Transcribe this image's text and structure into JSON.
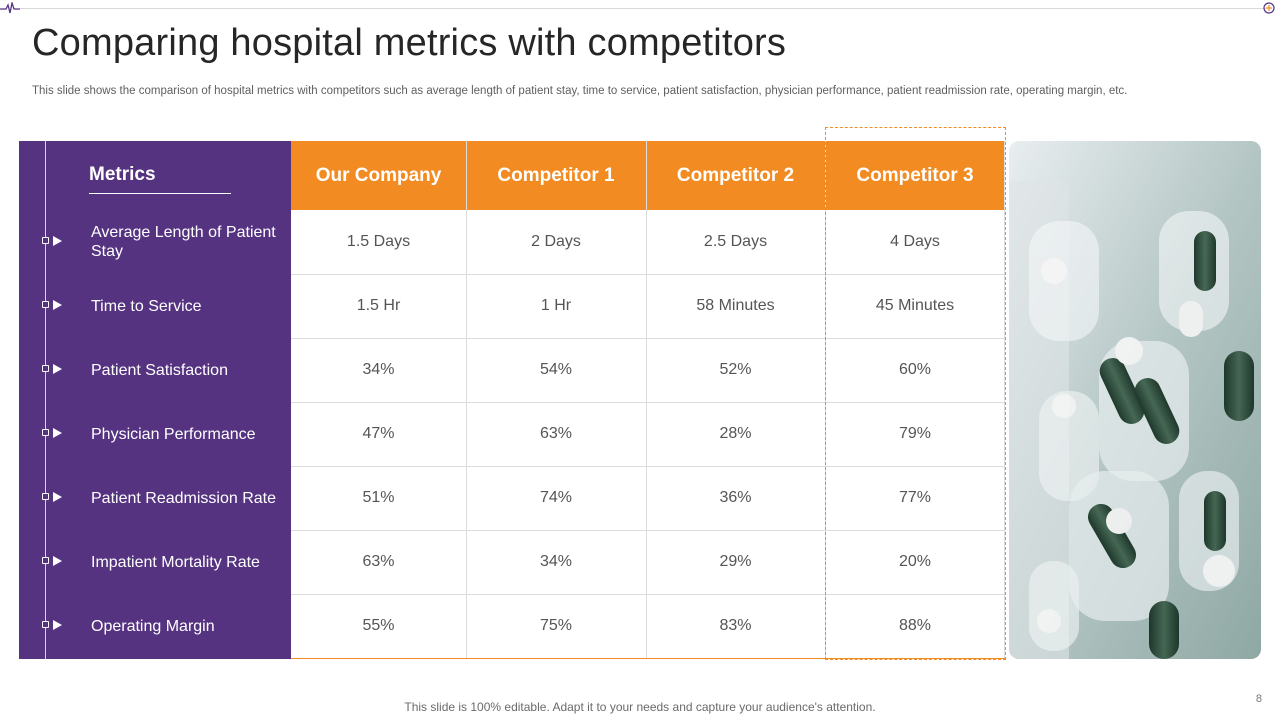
{
  "slide": {
    "title": "Comparing hospital metrics with competitors",
    "subtitle": "This slide shows the comparison of hospital metrics with competitors such as average length of patient stay, time to  service, patient satisfaction, physician performance, patient readmission rate, operating margin, etc.",
    "footer": "This slide is 100% editable. Adapt it to your needs and capture your audience's attention.",
    "page_number": "8"
  },
  "metrics_header": "Metrics",
  "metrics": [
    "Average Length of Patient Stay",
    "Time to Service",
    "Patient Satisfaction",
    "Physician Performance",
    "Patient Readmission Rate",
    "Impatient Mortality Rate",
    "Operating Margin"
  ],
  "columns": [
    "Our Company",
    "Competitor 1",
    "Competitor 2",
    "Competitor 3"
  ],
  "rows": [
    [
      "1.5 Days",
      "2 Days",
      "2.5 Days",
      "4 Days"
    ],
    [
      "1.5 Hr",
      "1 Hr",
      "58 Minutes",
      "45 Minutes"
    ],
    [
      "34%",
      "54%",
      "52%",
      "60%"
    ],
    [
      "47%",
      "63%",
      "28%",
      "79%"
    ],
    [
      "51%",
      "74%",
      "36%",
      "77%"
    ],
    [
      "63%",
      "34%",
      "29%",
      "20%"
    ],
    [
      "55%",
      "75%",
      "83%",
      "88%"
    ]
  ],
  "colors": {
    "accent": "#f28c22",
    "panel": "#553380"
  },
  "icons": {
    "top_left": "pulse-line-icon",
    "top_right": "plus-circle-icon",
    "bullet": "play-arrow-icon",
    "photo": "pill-blister-image"
  }
}
